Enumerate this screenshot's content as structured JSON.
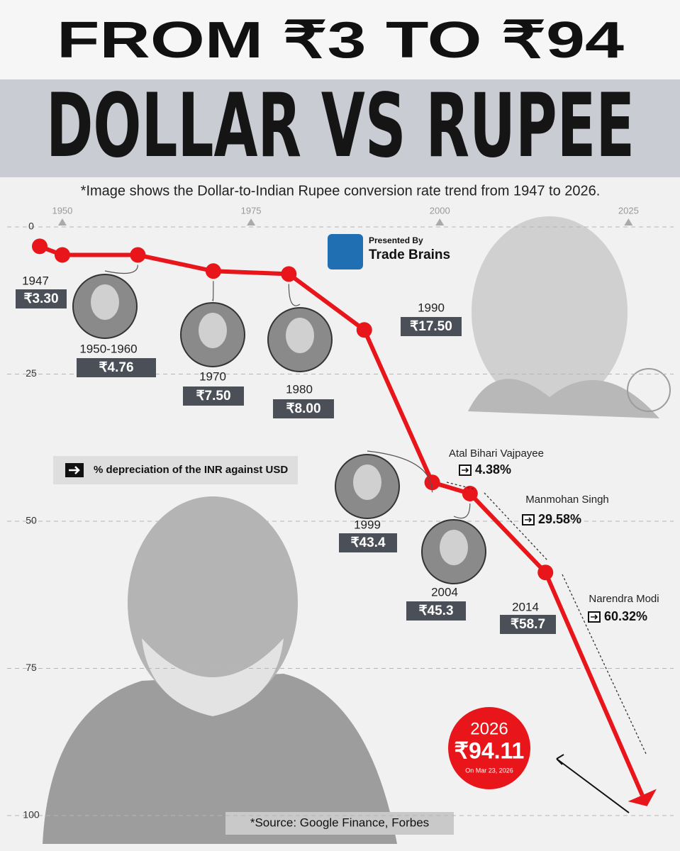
{
  "header": {
    "title": "FROM ₹3 TO ₹94",
    "headline": "DOLLAR VS RUPEE",
    "note": "*Image shows the Dollar-to-Indian Rupee conversion rate trend from 1947 to 2026."
  },
  "presenter": {
    "prefix": "Presented By",
    "name": "Trade Brains"
  },
  "chart_data": {
    "type": "line",
    "color": "#e8161b",
    "x": [
      1947,
      1950,
      1960,
      1970,
      1980,
      1990,
      1999,
      2004,
      2014,
      2026
    ],
    "values": [
      3.3,
      4.76,
      4.76,
      7.5,
      8.0,
      17.5,
      43.4,
      45.3,
      58.7,
      94.11
    ],
    "value_labels": [
      "₹3.30",
      null,
      "₹4.76",
      "₹7.50",
      "₹8.00",
      "₹17.50",
      "₹43.4",
      "₹45.3",
      "₹58.7",
      "₹94.11"
    ],
    "point_labels": [
      "1947",
      null,
      "1950-1960",
      "1970",
      "1980",
      "1990",
      "1999",
      "2004",
      "2014",
      "2026"
    ],
    "latest_note": "On Mar 23, 2026",
    "xlim": [
      1947,
      2026
    ],
    "xticks": [
      1950,
      1975,
      2000,
      2025
    ],
    "ylim": [
      0,
      100
    ],
    "yticks": [
      0,
      25,
      50,
      75,
      100
    ],
    "y_reversed": true,
    "grid": true
  },
  "depreciation": {
    "legend": "% depreciation of the INR against USD",
    "leaders": [
      "Atal Bihari Vajpayee",
      "Manmohan Singh",
      "Narendra Modi"
    ],
    "values": [
      4.38,
      29.58,
      60.32
    ],
    "value_labels": [
      "4.38%",
      "29.58%",
      "60.32%"
    ]
  },
  "source": "*Source: Google Finance, Forbes"
}
